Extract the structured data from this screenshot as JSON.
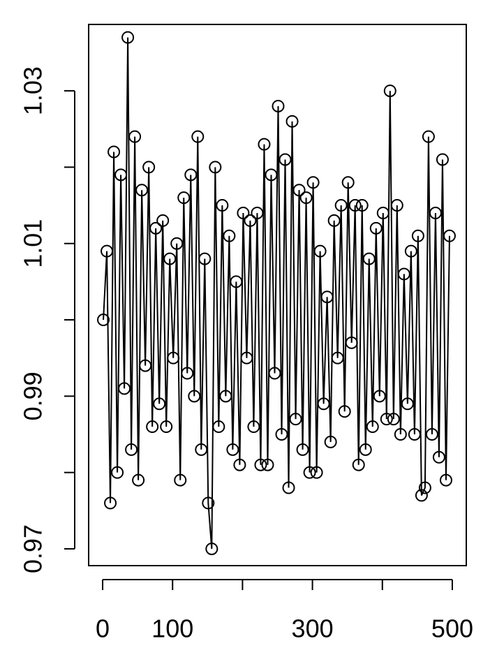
{
  "chart_data": {
    "type": "line",
    "marker": "circle",
    "color": "#000000",
    "x": [
      1,
      6,
      11,
      16,
      21,
      26,
      31,
      36,
      41,
      46,
      51,
      56,
      61,
      66,
      71,
      76,
      81,
      86,
      91,
      96,
      101,
      106,
      111,
      116,
      121,
      126,
      131,
      136,
      141,
      146,
      151,
      156,
      161,
      166,
      171,
      176,
      181,
      186,
      191,
      196,
      201,
      206,
      211,
      216,
      221,
      226,
      231,
      236,
      241,
      246,
      251,
      256,
      261,
      266,
      271,
      276,
      281,
      286,
      291,
      296,
      301,
      306,
      311,
      316,
      321,
      326,
      331,
      336,
      341,
      346,
      351,
      356,
      361,
      366,
      371,
      376,
      381,
      386,
      391,
      396,
      401,
      406,
      411,
      416,
      421,
      426,
      431,
      436,
      441,
      446,
      451,
      456,
      461,
      466,
      471,
      476,
      481,
      486,
      491,
      496
    ],
    "values": [
      1.0,
      1.009,
      0.976,
      1.022,
      0.98,
      1.019,
      0.991,
      1.037,
      0.983,
      1.024,
      0.979,
      1.017,
      0.994,
      1.02,
      0.986,
      1.012,
      0.989,
      1.013,
      0.986,
      1.008,
      0.995,
      1.01,
      0.979,
      1.016,
      0.993,
      1.019,
      0.99,
      1.024,
      0.983,
      1.008,
      0.976,
      0.97,
      1.02,
      0.986,
      1.015,
      0.99,
      1.011,
      0.983,
      1.005,
      0.981,
      1.014,
      0.995,
      1.013,
      0.986,
      1.014,
      0.981,
      1.023,
      0.981,
      1.019,
      0.993,
      1.028,
      0.985,
      1.021,
      0.978,
      1.026,
      0.987,
      1.017,
      0.983,
      1.016,
      0.98,
      1.018,
      0.98,
      1.009,
      0.989,
      1.003,
      0.984,
      1.013,
      0.995,
      1.015,
      0.988,
      1.018,
      0.997,
      1.015,
      0.981,
      1.015,
      0.983,
      1.008,
      0.986,
      1.012,
      0.99,
      1.014,
      0.987,
      1.03,
      0.987,
      1.015,
      0.985,
      1.006,
      0.989,
      1.009,
      0.985,
      1.011,
      0.977,
      0.978,
      1.024,
      0.985,
      1.014,
      0.982,
      1.021,
      0.979,
      1.011
    ],
    "xlim": [
      -20,
      520
    ],
    "ylim": [
      0.9678,
      1.0387
    ],
    "xticks": [
      0,
      100,
      {
        "value": 200,
        "label": null
      },
      300,
      {
        "value": 400,
        "label": null
      },
      500
    ],
    "yticks": [
      0.97,
      {
        "value": 0.98,
        "label": null
      },
      0.99,
      {
        "value": 1.0,
        "label": null
      },
      1.01,
      {
        "value": 1.02,
        "label": null
      },
      1.03
    ]
  }
}
